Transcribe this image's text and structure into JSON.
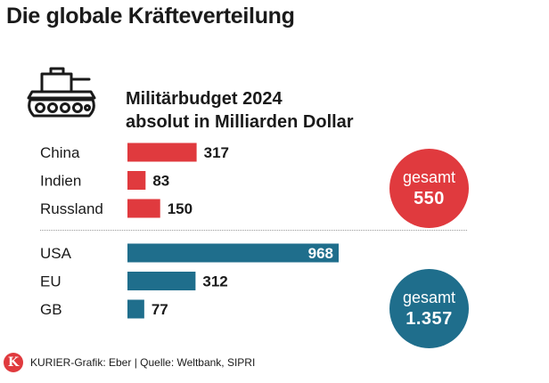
{
  "title": "Die globale Kräfteverteilung",
  "subtitle_line1": "Militärbudget 2024",
  "subtitle_line2": "absolut in Milliarden Dollar",
  "colors": {
    "red": "#e03a3e",
    "blue": "#1f6e8c"
  },
  "chart_data": {
    "type": "bar",
    "orientation": "horizontal",
    "title": "Militärbudget 2024",
    "unit": "absolut in Milliarden Dollar",
    "groups": [
      {
        "name": "red",
        "color": "#e03a3e",
        "categories": [
          "China",
          "Indien",
          "Russland"
        ],
        "values": [
          317,
          83,
          150
        ],
        "value_labels": [
          "317",
          "83",
          "150"
        ],
        "total_label": "gesamt",
        "total_value": "550"
      },
      {
        "name": "blue",
        "color": "#1f6e8c",
        "categories": [
          "USA",
          "EU",
          "GB"
        ],
        "values": [
          968,
          312,
          77
        ],
        "value_labels": [
          "968",
          "312",
          "77"
        ],
        "total_label": "gesamt",
        "total_value": "1.357"
      }
    ],
    "xlim": [
      0,
      968
    ]
  },
  "badges": {
    "red": {
      "label": "gesamt",
      "value": "550"
    },
    "blue": {
      "label": "gesamt",
      "value": "1.357"
    }
  },
  "footer": {
    "logo_letter": "K",
    "source": "KURIER-Grafik: Eber | Quelle: Weltbank, SIPRI"
  }
}
